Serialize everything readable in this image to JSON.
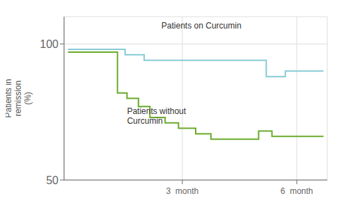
{
  "chart_data": {
    "type": "line",
    "title": "",
    "ylabel": "Patients in\nremission\n(%)",
    "xlim": [
      -0.1,
      6.8
    ],
    "xticks": [
      {
        "value": 3,
        "label": "3  month"
      },
      {
        "value": 6,
        "label": "6  month"
      }
    ],
    "ylim": [
      50,
      110
    ],
    "yticks": [
      50,
      100
    ],
    "grid": true,
    "series": [
      {
        "color": "#85ccd6",
        "x": [
          0.0,
          1.5,
          1.5,
          2.0,
          2.0,
          5.2,
          5.2,
          5.7,
          5.7,
          6.7
        ],
        "values": [
          98,
          98,
          96,
          96,
          94,
          94,
          88,
          88,
          90,
          90
        ]
      },
      {
        "color": "#6aaa2a",
        "x": [
          0.0,
          1.3,
          1.3,
          1.55,
          1.55,
          1.85,
          1.85,
          2.15,
          2.15,
          2.55,
          2.55,
          2.9,
          2.9,
          3.35,
          3.35,
          3.75,
          3.75,
          5.0,
          5.0,
          5.35,
          5.35,
          6.7
        ],
        "values": [
          97,
          97,
          82,
          82,
          80,
          80,
          77,
          77,
          73,
          73,
          71,
          71,
          69,
          69,
          67,
          67,
          65,
          65,
          68,
          68,
          66,
          66
        ]
      }
    ],
    "annotations": [
      {
        "text": "Patients on Curcumin",
        "x": 3.5,
        "y": 105,
        "anchor": "bottom"
      },
      {
        "text": "Patients without\nCurcumin",
        "x": 1.55,
        "y": 77,
        "anchor": "top-left"
      }
    ]
  }
}
